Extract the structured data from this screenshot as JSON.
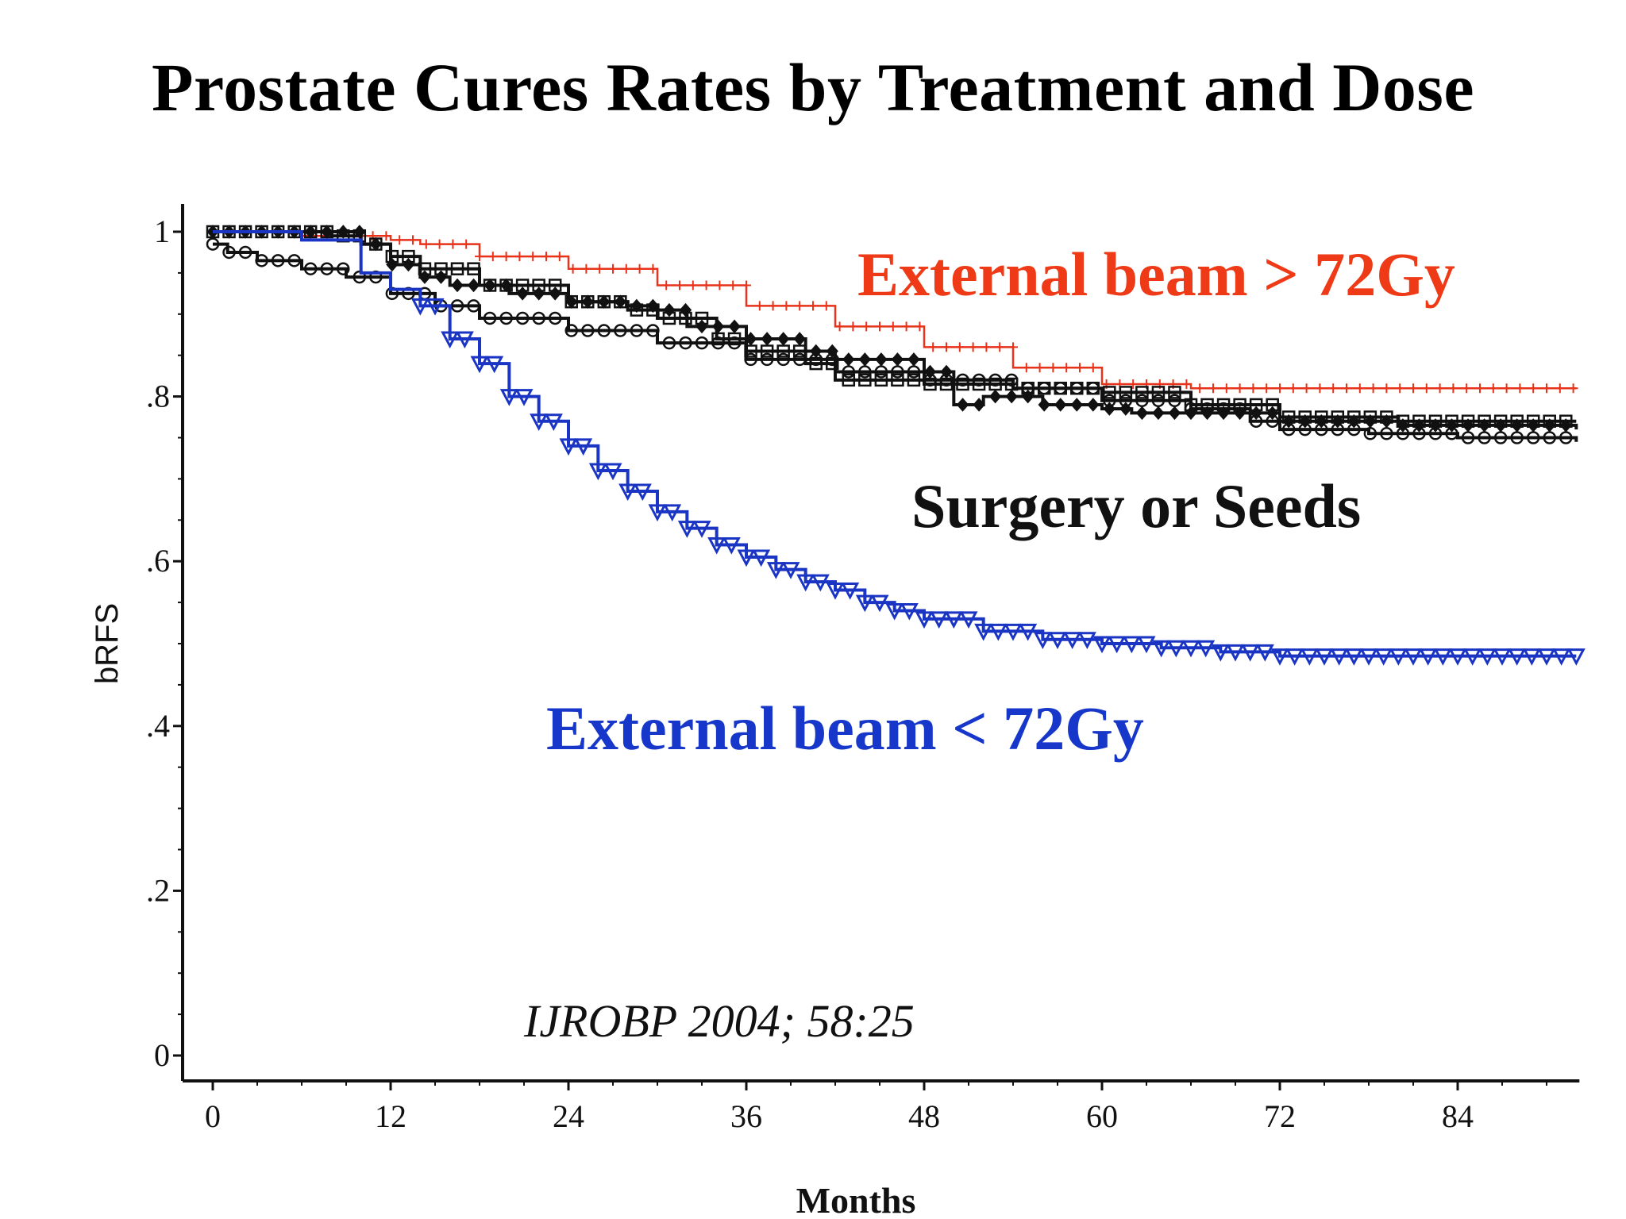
{
  "slide": {
    "title": "Prostate Cures Rates by Treatment and Dose"
  },
  "chart_data": {
    "type": "line",
    "title": "",
    "xlabel": "Months",
    "ylabel": "bRFS",
    "xlim": [
      0,
      92
    ],
    "ylim": [
      0,
      1
    ],
    "xticks": [
      0,
      12,
      24,
      36,
      48,
      60,
      72,
      84
    ],
    "xtick_labels": [
      "0",
      "12",
      "24",
      "36",
      "48",
      "60",
      "72",
      "84"
    ],
    "yticks": [
      0,
      0.2,
      0.4,
      0.6,
      0.8,
      1
    ],
    "ytick_labels": [
      "0",
      ".2",
      ".4",
      ".6",
      ".8",
      "1"
    ],
    "grid": false,
    "colors": {
      "red": "#e8321a",
      "black": "#111111",
      "blue": "#1a34c4",
      "annot_red": "#ee3a17",
      "annot_blue": "#1637c9"
    },
    "series": [
      {
        "color_key": "red",
        "marker": "plus",
        "x": [
          0,
          6,
          12,
          14,
          18,
          24,
          30,
          36,
          42,
          48,
          54,
          60,
          66,
          72,
          78,
          84,
          92
        ],
        "y": [
          1.0,
          0.995,
          0.99,
          0.985,
          0.97,
          0.955,
          0.935,
          0.91,
          0.885,
          0.86,
          0.835,
          0.815,
          0.81,
          0.81,
          0.81,
          0.81,
          0.81
        ]
      },
      {
        "color_key": "black",
        "marker": "circle",
        "x": [
          0,
          1,
          3,
          6,
          9,
          12,
          15,
          18,
          24,
          30,
          36,
          42,
          48,
          54,
          60,
          66,
          70,
          72,
          78,
          84,
          92
        ],
        "y": [
          0.985,
          0.975,
          0.965,
          0.955,
          0.945,
          0.925,
          0.91,
          0.895,
          0.88,
          0.865,
          0.845,
          0.83,
          0.82,
          0.81,
          0.795,
          0.785,
          0.77,
          0.76,
          0.755,
          0.75,
          0.745
        ]
      },
      {
        "color_key": "black",
        "marker": "diamond",
        "x": [
          0,
          6,
          10,
          12,
          14,
          16,
          20,
          24,
          28,
          30,
          32,
          36,
          40,
          42,
          48,
          50,
          52,
          56,
          60,
          62,
          66,
          72,
          80,
          92
        ],
        "y": [
          1.0,
          1.0,
          0.985,
          0.96,
          0.945,
          0.935,
          0.925,
          0.915,
          0.91,
          0.905,
          0.885,
          0.87,
          0.855,
          0.845,
          0.83,
          0.79,
          0.8,
          0.79,
          0.785,
          0.78,
          0.78,
          0.77,
          0.765,
          0.76
        ]
      },
      {
        "color_key": "black",
        "marker": "square",
        "x": [
          0,
          5,
          8,
          10,
          12,
          14,
          18,
          24,
          28,
          30,
          34,
          36,
          40,
          42,
          48,
          54,
          60,
          66,
          72,
          80,
          92
        ],
        "y": [
          1.0,
          1.0,
          0.995,
          0.985,
          0.97,
          0.955,
          0.935,
          0.915,
          0.905,
          0.895,
          0.87,
          0.855,
          0.84,
          0.82,
          0.815,
          0.81,
          0.805,
          0.79,
          0.775,
          0.77,
          0.77
        ]
      },
      {
        "color_key": "blue",
        "marker": "triangle-down",
        "x": [
          0,
          6,
          10,
          12,
          14,
          16,
          18,
          20,
          22,
          24,
          26,
          28,
          30,
          32,
          34,
          36,
          38,
          40,
          42,
          44,
          46,
          48,
          52,
          56,
          60,
          64,
          68,
          72,
          78,
          84,
          92
        ],
        "y": [
          1.0,
          0.99,
          0.95,
          0.93,
          0.91,
          0.87,
          0.84,
          0.8,
          0.77,
          0.74,
          0.71,
          0.685,
          0.66,
          0.64,
          0.62,
          0.605,
          0.59,
          0.575,
          0.565,
          0.55,
          0.54,
          0.53,
          0.515,
          0.505,
          0.5,
          0.495,
          0.49,
          0.485,
          0.485,
          0.485,
          0.485
        ]
      }
    ],
    "annotations": [
      {
        "text": "External beam > 72Gy",
        "color_key": "annot_red"
      },
      {
        "text": "Surgery or Seeds",
        "color_key": "black"
      },
      {
        "text": "External beam < 72Gy",
        "color_key": "annot_blue"
      },
      {
        "text": "IJROBP 2004; 58:25",
        "color_key": "black"
      }
    ]
  }
}
